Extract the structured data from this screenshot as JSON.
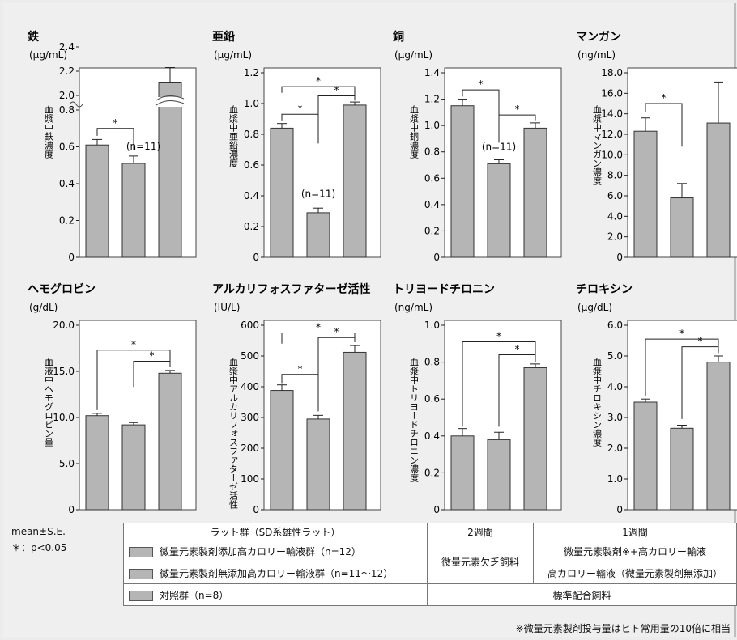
{
  "chart_data": [
    {
      "type": "bar",
      "title": "鉄",
      "unit": "(μg/mL)",
      "ylabel": "血漿中鉄濃度",
      "categories": [
        "微量元素製剤添加高カロリー輸液群",
        "微量元素製剤無添加高カロリー輸液群",
        "対照群"
      ],
      "values": [
        0.61,
        0.51,
        2.11
      ],
      "errors": [
        0.03,
        0.04,
        0.12
      ],
      "axis_break": {
        "lower_max": 0.8,
        "upper_min": 1.8
      },
      "ticks": [
        "0",
        "0.2",
        "0.4",
        "0.6",
        "0.8",
        "2.0",
        "2.2",
        "2.4"
      ],
      "annotations": [
        "*",
        "*",
        "(n=11)"
      ]
    },
    {
      "type": "bar",
      "title": "亜鉛",
      "unit": "(μg/mL)",
      "ylabel": "血漿中亜鉛濃度",
      "categories": [
        "微量元素製剤添加高カロリー輸液群",
        "微量元素製剤無添加高カロリー輸液群",
        "対照群"
      ],
      "values": [
        0.84,
        0.29,
        0.99
      ],
      "errors": [
        0.03,
        0.03,
        0.02
      ],
      "ylim": [
        0,
        1.2
      ],
      "ticks": [
        "0",
        "0.2",
        "0.4",
        "0.6",
        "0.8",
        "1.0",
        "1.2"
      ],
      "annotations": [
        "*",
        "*",
        "*",
        "(n=11)"
      ]
    },
    {
      "type": "bar",
      "title": "銅",
      "unit": "(μg/mL)",
      "ylabel": "血漿中銅濃度",
      "categories": [
        "微量元素製剤添加高カロリー輸液群",
        "微量元素製剤無添加高カロリー輸液群",
        "対照群"
      ],
      "values": [
        1.15,
        0.71,
        0.98
      ],
      "errors": [
        0.05,
        0.03,
        0.04
      ],
      "ylim": [
        0,
        1.4
      ],
      "ticks": [
        "0",
        "0.2",
        "0.4",
        "0.6",
        "0.8",
        "1.0",
        "1.2",
        "1.4"
      ],
      "annotations": [
        "*",
        "*",
        "(n=11)"
      ]
    },
    {
      "type": "bar",
      "title": "マンガン",
      "unit": "(ng/mL)",
      "ylabel": "血漿中マンガン濃度",
      "categories": [
        "微量元素製剤添加高カロリー輸液群",
        "微量元素製剤無添加高カロリー輸液群",
        "対照群"
      ],
      "values": [
        12.3,
        5.8,
        13.1
      ],
      "errors": [
        1.3,
        1.4,
        4.0
      ],
      "ylim": [
        0,
        18
      ],
      "ticks": [
        "0",
        "2.0",
        "4.0",
        "6.0",
        "8.0",
        "10.0",
        "12.0",
        "14.0",
        "16.0",
        "18.0"
      ],
      "annotations": [
        "*"
      ]
    },
    {
      "type": "bar",
      "title": "ヘモグロビン",
      "unit": "(g/dL)",
      "ylabel": "血液中ヘモグロビン量",
      "categories": [
        "微量元素製剤添加高カロリー輸液群",
        "微量元素製剤無添加高カロリー輸液群",
        "対照群"
      ],
      "values": [
        10.2,
        9.2,
        14.8
      ],
      "errors": [
        0.25,
        0.25,
        0.3
      ],
      "ylim": [
        0,
        20
      ],
      "ticks": [
        "0",
        "5.0",
        "10.0",
        "15.0",
        "20.0"
      ],
      "annotations": [
        "*",
        "*"
      ]
    },
    {
      "type": "bar",
      "title": "アルカリフォスファターゼ活性",
      "unit": "(IU/L)",
      "ylabel": "血漿中アルカリフォスファターゼ活性",
      "categories": [
        "微量元素製剤添加高カロリー輸液群",
        "微量元素製剤無添加高カロリー輸液群",
        "対照群"
      ],
      "values": [
        388,
        295,
        512
      ],
      "errors": [
        18,
        12,
        22
      ],
      "ylim": [
        0,
        600
      ],
      "ticks": [
        "0",
        "100",
        "200",
        "300",
        "400",
        "500",
        "600"
      ],
      "annotations": [
        "*",
        "*",
        "*"
      ]
    },
    {
      "type": "bar",
      "title": "トリヨードチロニン",
      "unit": "(ng/mL)",
      "ylabel": "血漿中トリヨードチロニン濃度",
      "categories": [
        "微量元素製剤添加高カロリー輸液群",
        "微量元素製剤無添加高カロリー輸液群",
        "対照群"
      ],
      "values": [
        0.4,
        0.38,
        0.77
      ],
      "errors": [
        0.04,
        0.04,
        0.02
      ],
      "ylim": [
        0,
        1.0
      ],
      "ticks": [
        "0",
        "0.2",
        "0.4",
        "0.6",
        "0.8",
        "1.0"
      ],
      "annotations": [
        "*",
        "*"
      ]
    },
    {
      "type": "bar",
      "title": "チロキシン",
      "unit": "(μg/dL)",
      "ylabel": "血漿中チロキシン濃度",
      "categories": [
        "微量元素製剤添加高カロリー輸液群",
        "微量元素製剤無添加高カロリー輸液群",
        "対照群"
      ],
      "values": [
        3.5,
        2.65,
        4.8
      ],
      "errors": [
        0.1,
        0.1,
        0.2
      ],
      "ylim": [
        0,
        6.0
      ],
      "ticks": [
        "0",
        "1.0",
        "2.0",
        "3.0",
        "4.0",
        "5.0",
        "6.0"
      ],
      "annotations": [
        "*",
        "*"
      ]
    }
  ],
  "stats": {
    "mean": "mean±S.E.",
    "p": "＊：p<0.05"
  },
  "legend": {
    "header": {
      "group": "ラット群（SD系雄性ラット）",
      "w2": "2週間",
      "w1": "1週間"
    },
    "rows": [
      {
        "group": "微量元素製剤添加高カロリー輸液群（n=12）",
        "w1": "微量元素製剤※+高カロリー輸液"
      },
      {
        "group": "微量元素製剤無添加高カロリー輸液群（n=11〜12）",
        "w1": "高カロリー輸液（微量元素製剤無添加）"
      },
      {
        "group": "対照群（n=8）"
      }
    ],
    "w2_shared": "微量元素欠乏飼料",
    "control_diet": "標準配合飼料"
  },
  "footnote": "※微量元素製剤投与量はヒト常用量の10倍に相当",
  "colors": {
    "bar": "#b5b5b5",
    "frame": "#ffffff",
    "background": "#efefef"
  }
}
